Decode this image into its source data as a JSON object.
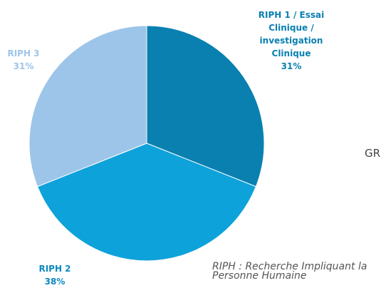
{
  "chart_data": {
    "type": "pie",
    "categories": [
      "RIPH 1 / Essai Clinique / investigation Clinique",
      "RIPH 2",
      "RIPH 3"
    ],
    "values": [
      31,
      38,
      31
    ],
    "value_labels": [
      "31%",
      "38%",
      "31%"
    ],
    "colors": [
      "#0a80b1",
      "#0ea2da",
      "#9dc5e9"
    ],
    "label_colors": [
      "#0a80b1",
      "#0a89c0",
      "#9dc5e9"
    ],
    "annotations": [
      "GR",
      "RIPH : Recherche Impliquant la Personne Humaine"
    ]
  }
}
